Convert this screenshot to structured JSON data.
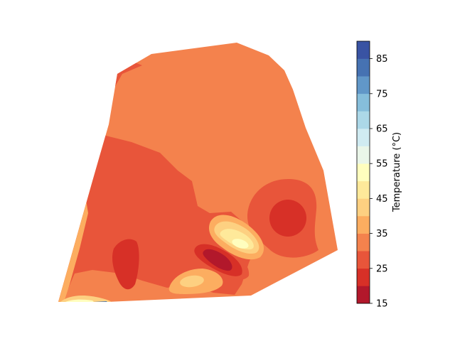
{
  "chart_data": {
    "type": "heatmap",
    "subtype": "filled-contour",
    "title": "",
    "xlabel": "",
    "ylabel": "",
    "axes_visible": false,
    "grid": false,
    "colormap": "RdYlBu",
    "colorbar": {
      "label": "Temperature (°C)",
      "vmin": 15,
      "vmax": 90,
      "level_step": 5,
      "ticks": [
        15,
        25,
        35,
        45,
        55,
        65,
        75,
        85
      ],
      "placement": "right",
      "band_colors": [
        "#b2182b",
        "#d73027",
        "#e8553a",
        "#f4824d",
        "#fcad60",
        "#fdd081",
        "#fee99a",
        "#fffebe",
        "#eaf6e9",
        "#d0ebf2",
        "#acd8e8",
        "#86bedb",
        "#6197c8",
        "#4672b2",
        "#3953a3"
      ]
    },
    "regions": [
      {
        "level": [
          30,
          35
        ],
        "description": "background field"
      },
      {
        "level": [
          25,
          30
        ],
        "description": "warm zone lower-left and center"
      },
      {
        "level": [
          20,
          25
        ],
        "description": "cool pockets"
      },
      {
        "level": [
          15,
          20
        ],
        "description": "coldest pocket center"
      },
      {
        "level": [
          35,
          50
        ],
        "description": "hot spots center-right"
      }
    ]
  }
}
